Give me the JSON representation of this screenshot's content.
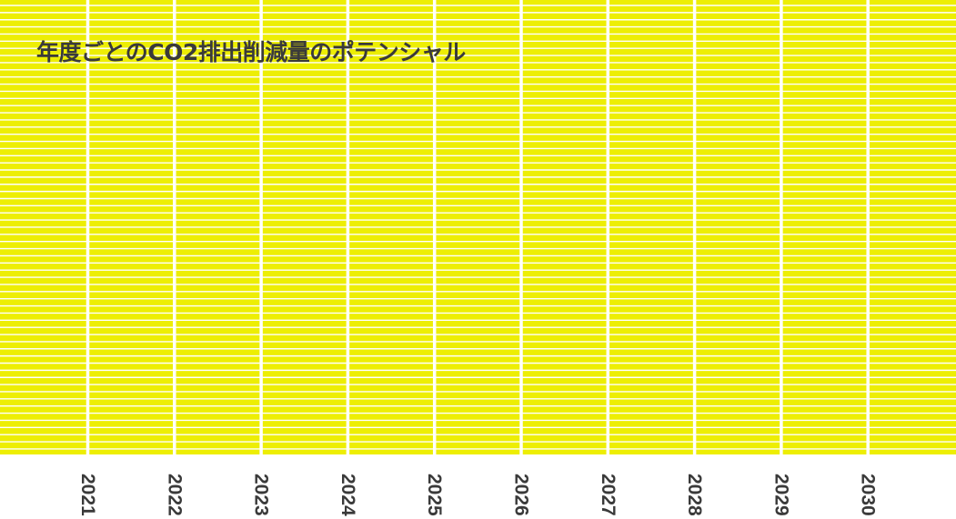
{
  "chart_data": {
    "type": "bar",
    "title": "年度ごとのCO2排出削減量のポテンシャル",
    "xlabel": "",
    "ylabel": "",
    "categories": [
      "2021",
      "2022",
      "2023",
      "2024",
      "2025",
      "2026",
      "2027",
      "2028",
      "2029",
      "2030"
    ],
    "series": [
      {
        "values": [
          null,
          null,
          null,
          null,
          null,
          null,
          null,
          null,
          null,
          null
        ]
      }
    ],
    "grid": true,
    "legend": "none"
  },
  "colors": {
    "plot_background": "#EDEE04",
    "grid_lines": "#FFFFFF",
    "text": "#3A3A3A",
    "page_background": "#FFFFFF"
  }
}
